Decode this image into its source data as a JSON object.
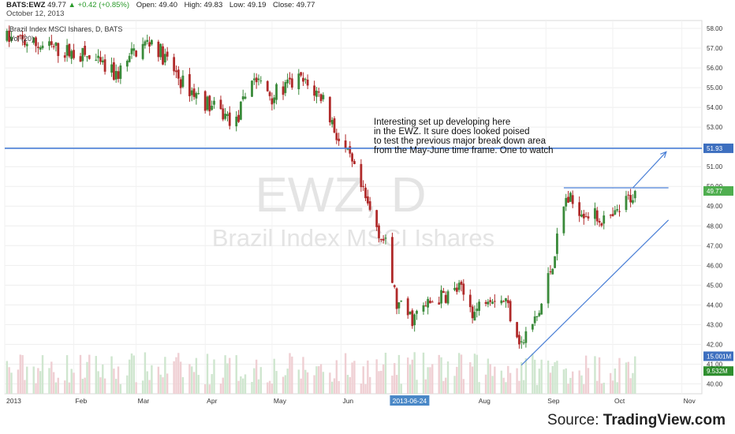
{
  "header": {
    "symbol": "BATS:EWZ",
    "last": "49.77",
    "change": "+0.42 (+0.85%)",
    "open_label": "Open:",
    "open": "49.40",
    "high_label": "High:",
    "high": "49.83",
    "low_label": "Low:",
    "low": "49.19",
    "close_label": "Close:",
    "close": "49.77",
    "date": "October 12, 2013"
  },
  "legend": {
    "series": "Brazil Index MSCI Ishares, D, BATS",
    "volume": "Vol (20)"
  },
  "watermark": {
    "line1": "EWZ, D",
    "line2": "Brazil Index MSCI Ishares"
  },
  "annotation": [
    "Interesting set up developing here",
    "in the EWZ. It sure does looked poised",
    "to test the previous major break down area",
    "from the May-June time frame. One to watch"
  ],
  "source": {
    "label": "Source:",
    "brand": "TradingView.com"
  },
  "colors": {
    "up": "#3a8a3a",
    "down": "#b02a2a",
    "vol_up": "#cfe6cf",
    "vol_down": "#efcfd3",
    "line": "#4a7fd6",
    "last_price_bg": "#4fae4f",
    "level_bg": "#3d6fbf",
    "vol_bg": "#2f8f2f",
    "date_bg": "#4a88c7"
  },
  "chart_data": {
    "type": "candlestick",
    "title": "Brazil Index MSCI Ishares, D, BATS",
    "y_ticks": [
      "58.00",
      "57.00",
      "56.00",
      "55.00",
      "54.00",
      "53.00",
      "52.00",
      "51.00",
      "50.00",
      "49.00",
      "48.00",
      "47.00",
      "46.00",
      "45.00",
      "44.00",
      "43.00",
      "42.00",
      "41.00",
      "40.00"
    ],
    "ylim": [
      39.5,
      58.4
    ],
    "x_ticks": [
      "2013",
      "Feb",
      "Mar",
      "Apr",
      "May",
      "Jun",
      "2013-06-24",
      "Aug",
      "Sep",
      "Oct",
      "Nov"
    ],
    "x_ticks_date": [
      "2013-01-01",
      "2013-02-01",
      "2013-03-01",
      "2013-04-01",
      "2013-05-01",
      "2013-06-01",
      "2013-06-24",
      "2013-08-01",
      "2013-09-01",
      "2013-10-01",
      "2013-11-01"
    ],
    "xlim_dates": [
      "2013-01-01",
      "2013-11-10"
    ],
    "highlighted_tick": "2013-06-24",
    "price_markers": {
      "level": "51.93",
      "last": "49.77",
      "volume_avg": "15.001M",
      "volume_last": "9.532M",
      "partial": "41.00"
    },
    "level_line": 51.93,
    "resistance_line": {
      "price": 49.93,
      "from": "2013-09-09",
      "to": "2013-10-26"
    },
    "trend_line": {
      "from": [
        "2013-08-21",
        40.95
      ],
      "to": [
        "2013-10-26",
        48.3
      ]
    },
    "arrow": {
      "from": [
        "2013-10-10",
        49.93
      ],
      "to": [
        "2013-10-25",
        51.75
      ]
    },
    "regime_points": [
      [
        "2013-01-02",
        57.5
      ],
      [
        "2013-01-18",
        57.1
      ],
      [
        "2013-02-06",
        56.6
      ],
      [
        "2013-02-20",
        55.6
      ],
      [
        "2013-03-01",
        56.9
      ],
      [
        "2013-03-08",
        57.4
      ],
      [
        "2013-03-22",
        55.2
      ],
      [
        "2013-04-04",
        54.0
      ],
      [
        "2013-04-15",
        53.2
      ],
      [
        "2013-04-22",
        55.6
      ],
      [
        "2013-05-01",
        54.6
      ],
      [
        "2013-05-13",
        55.4
      ],
      [
        "2013-05-24",
        54.5
      ],
      [
        "2013-05-31",
        52.3
      ],
      [
        "2013-06-05",
        51.3
      ],
      [
        "2013-06-13",
        49.0
      ],
      [
        "2013-06-21",
        47.0
      ],
      [
        "2013-06-26",
        44.0
      ],
      [
        "2013-07-03",
        43.3
      ],
      [
        "2013-07-12",
        44.2
      ],
      [
        "2013-07-24",
        44.8
      ],
      [
        "2013-07-31",
        43.6
      ],
      [
        "2013-08-06",
        44.6
      ],
      [
        "2013-08-14",
        44.2
      ],
      [
        "2013-08-21",
        42.0
      ],
      [
        "2013-08-29",
        43.6
      ],
      [
        "2013-09-04",
        46.2
      ],
      [
        "2013-09-10",
        49.4
      ],
      [
        "2013-09-20",
        48.6
      ],
      [
        "2013-09-30",
        48.2
      ],
      [
        "2013-10-11",
        49.77
      ]
    ]
  }
}
